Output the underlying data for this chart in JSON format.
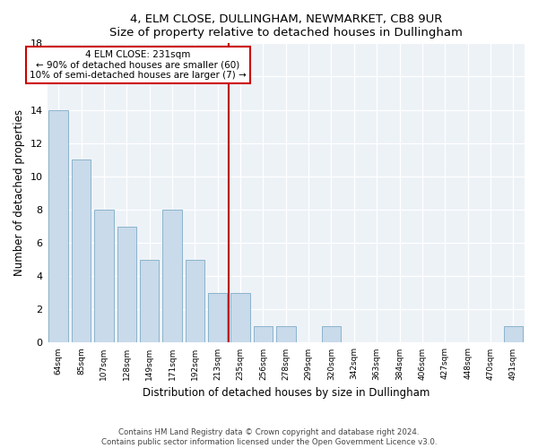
{
  "title1": "4, ELM CLOSE, DULLINGHAM, NEWMARKET, CB8 9UR",
  "title2": "Size of property relative to detached houses in Dullingham",
  "xlabel": "Distribution of detached houses by size in Dullingham",
  "ylabel": "Number of detached properties",
  "categories": [
    "64sqm",
    "85sqm",
    "107sqm",
    "128sqm",
    "149sqm",
    "171sqm",
    "192sqm",
    "213sqm",
    "235sqm",
    "256sqm",
    "278sqm",
    "299sqm",
    "320sqm",
    "342sqm",
    "363sqm",
    "384sqm",
    "406sqm",
    "427sqm",
    "448sqm",
    "470sqm",
    "491sqm"
  ],
  "values": [
    14,
    11,
    8,
    7,
    5,
    8,
    5,
    3,
    3,
    1,
    1,
    0,
    1,
    0,
    0,
    0,
    0,
    0,
    0,
    0,
    1
  ],
  "bar_color": "#c9daea",
  "bar_edge_color": "#8ab4cc",
  "vline_x_index": 8,
  "vline_color": "#bb0000",
  "annotation_title": "4 ELM CLOSE: 231sqm",
  "annotation_line1": "← 90% of detached houses are smaller (60)",
  "annotation_line2": "10% of semi-detached houses are larger (7) →",
  "annotation_box_color": "#ffffff",
  "annotation_box_edge": "#cc0000",
  "ylim": [
    0,
    18
  ],
  "yticks": [
    0,
    2,
    4,
    6,
    8,
    10,
    12,
    14,
    16,
    18
  ],
  "footer1": "Contains HM Land Registry data © Crown copyright and database right 2024.",
  "footer2": "Contains public sector information licensed under the Open Government Licence v3.0.",
  "bg_color": "#edf2f7"
}
